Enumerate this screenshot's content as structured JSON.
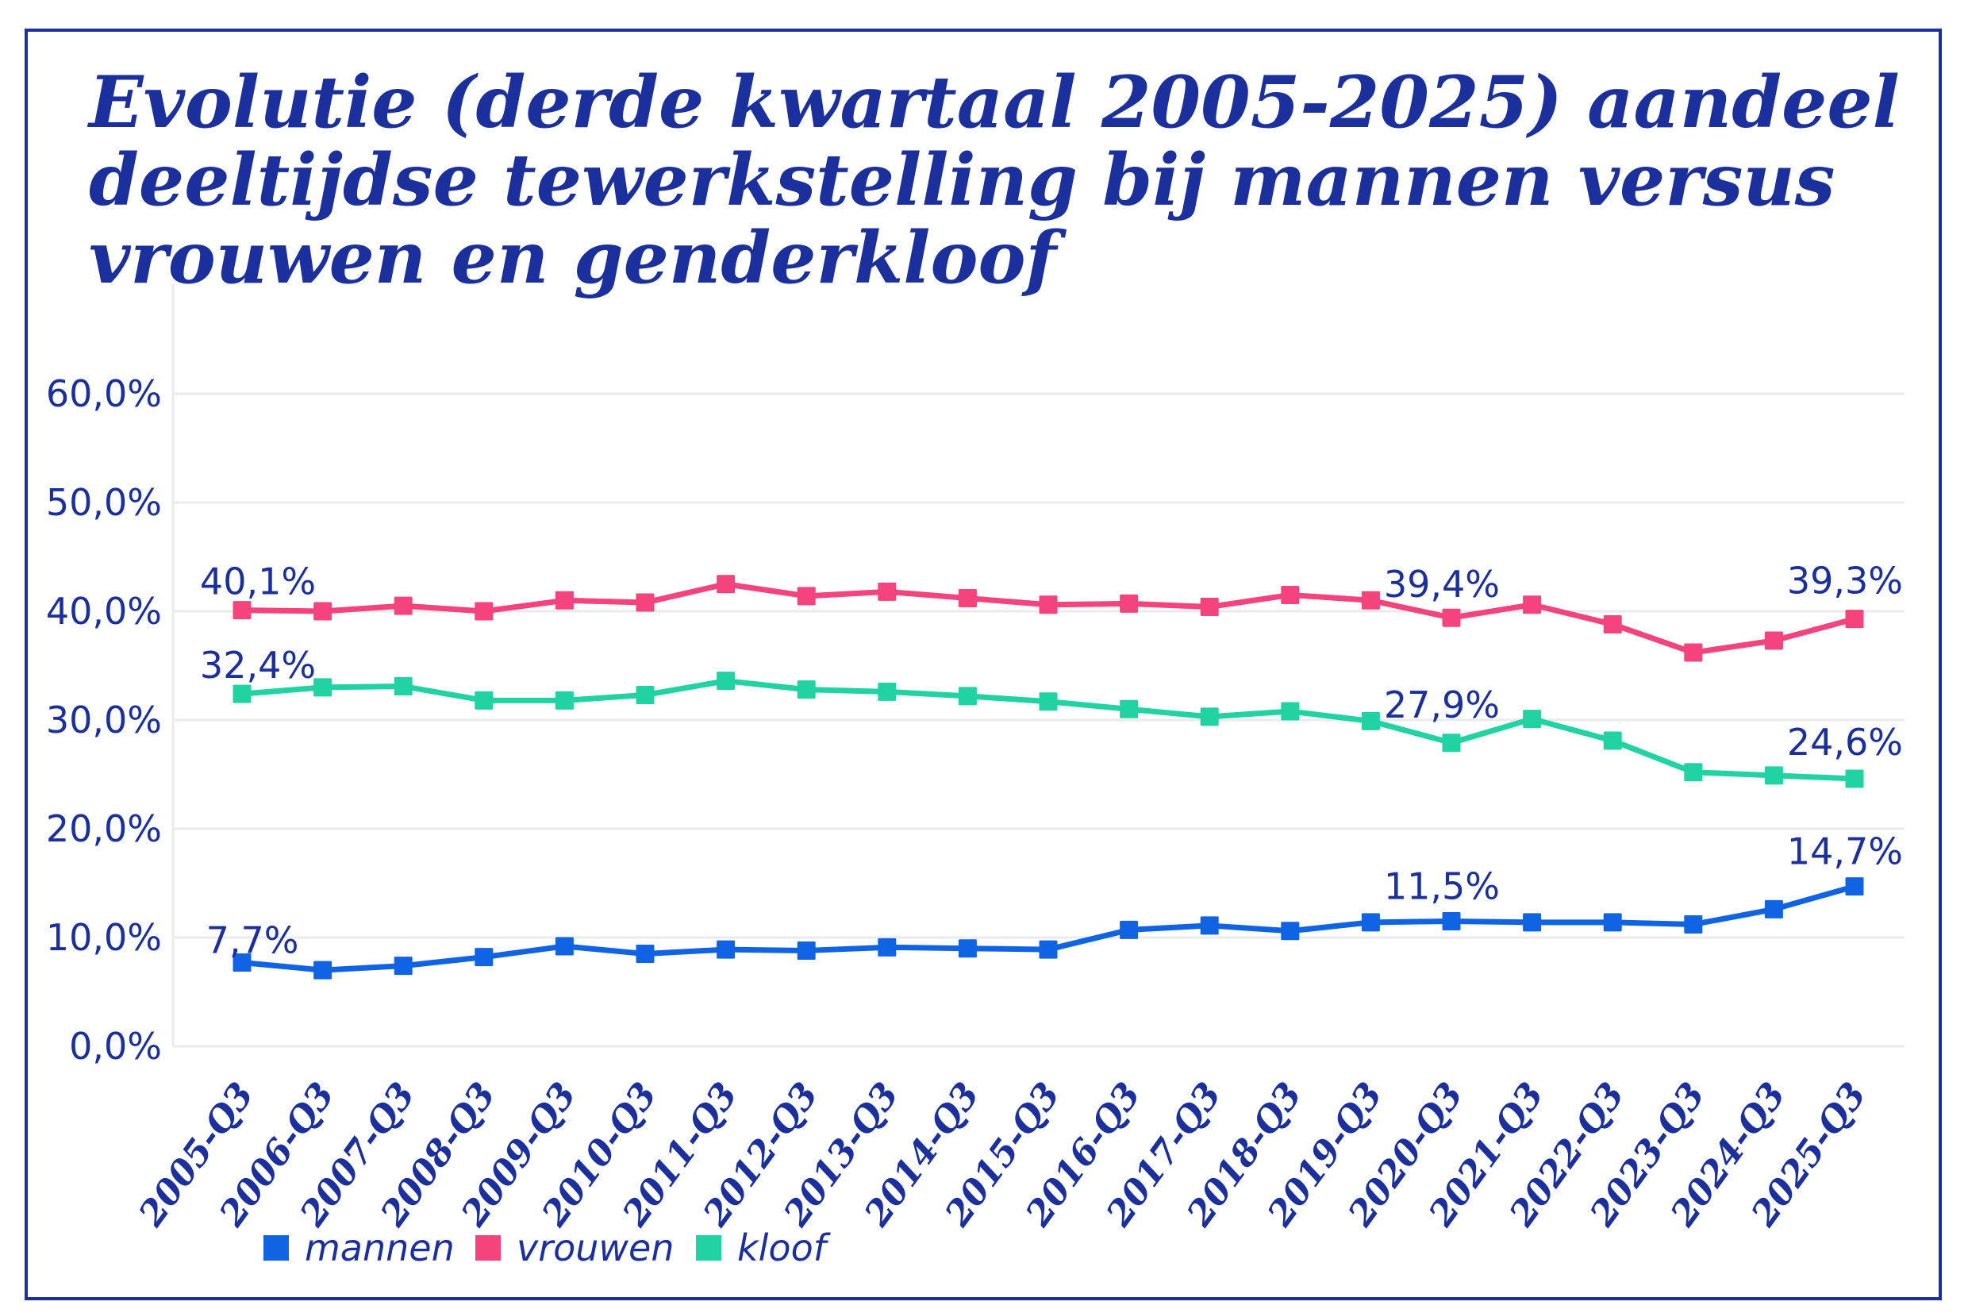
{
  "title": {
    "lines": [
      "Evolutie (derde kwartaal 2005-2025) aandeel",
      "deeltijdse tewerkstelling bij mannen versus",
      "vrouwen en genderkloof"
    ]
  },
  "colors": {
    "navy": "#1B2F9D",
    "mannen": "#1064E3",
    "vrouwen": "#F4437D",
    "kloof": "#21D3A2",
    "grid": "#EBEBEE",
    "background": "#FFFFFF"
  },
  "chart_data": {
    "type": "line",
    "title": "Evolutie (derde kwartaal 2005-2025) aandeel deeltijdse tewerkstelling bij mannen versus vrouwen en genderkloof",
    "x": [
      "2005-Q3",
      "2006-Q3",
      "2007-Q3",
      "2008-Q3",
      "2009-Q3",
      "2010-Q3",
      "2011-Q3",
      "2012-Q3",
      "2013-Q3",
      "2014-Q3",
      "2015-Q3",
      "2016-Q3",
      "2017-Q3",
      "2018-Q3",
      "2019-Q3",
      "2020-Q3",
      "2021-Q3",
      "2022-Q3",
      "2023-Q3",
      "2024-Q3",
      "2025-Q3"
    ],
    "series": [
      {
        "name": "mannen",
        "color_key": "mannen",
        "values": [
          7.7,
          7.0,
          7.4,
          8.2,
          9.2,
          8.5,
          8.9,
          8.8,
          9.1,
          9.0,
          8.9,
          10.7,
          11.1,
          10.6,
          11.4,
          11.5,
          11.4,
          11.4,
          11.2,
          12.6,
          14.7
        ]
      },
      {
        "name": "vrouwen",
        "color_key": "vrouwen",
        "values": [
          40.1,
          40.0,
          40.5,
          40.0,
          41.0,
          40.8,
          42.5,
          41.4,
          41.8,
          41.2,
          40.6,
          40.7,
          40.4,
          41.5,
          41.0,
          39.4,
          40.6,
          38.8,
          36.2,
          37.3,
          39.3
        ]
      },
      {
        "name": "kloof",
        "color_key": "kloof",
        "values": [
          32.4,
          33.0,
          33.1,
          31.8,
          31.8,
          32.3,
          33.6,
          32.8,
          32.6,
          32.2,
          31.7,
          31.0,
          30.3,
          30.8,
          29.9,
          27.9,
          30.1,
          28.1,
          25.2,
          24.9,
          24.6
        ]
      }
    ],
    "y_ticks": [
      {
        "value": 0,
        "label": "0,0%"
      },
      {
        "value": 10,
        "label": "10,0%"
      },
      {
        "value": 20,
        "label": "20,0%"
      },
      {
        "value": 30,
        "label": "30,0%"
      },
      {
        "value": 40,
        "label": "40,0%"
      },
      {
        "value": 50,
        "label": "50,0%"
      },
      {
        "value": 60,
        "label": "60,0%"
      }
    ],
    "ylim": [
      0,
      65
    ],
    "grid": true,
    "legend_position": "bottom",
    "legend": [
      {
        "label": "mannen",
        "color_key": "mannen",
        "x": 332
      },
      {
        "label": "vrouwen",
        "color_key": "vrouwen",
        "x": 599
      },
      {
        "label": "kloof",
        "color_key": "kloof",
        "x": 877
      }
    ],
    "point_labels": [
      {
        "series": "vrouwen",
        "index": 0,
        "text": "40,1%",
        "anchor": "middle",
        "tx": 325,
        "dy": -20
      },
      {
        "series": "kloof",
        "index": 0,
        "text": "32,4%",
        "anchor": "middle",
        "tx": 325,
        "dy": -20
      },
      {
        "series": "mannen",
        "index": 0,
        "text": "7,7%",
        "anchor": "middle",
        "tx": 318,
        "dy": -12
      },
      {
        "series": "vrouwen",
        "index": 15,
        "text": "39,4%",
        "anchor": "end",
        "tx": 1890,
        "dy": -26
      },
      {
        "series": "kloof",
        "index": 15,
        "text": "27,9%",
        "anchor": "end",
        "tx": 1890,
        "dy": -32
      },
      {
        "series": "mannen",
        "index": 15,
        "text": "11,5%",
        "anchor": "end",
        "tx": 1890,
        "dy": -28
      },
      {
        "series": "vrouwen",
        "index": 20,
        "text": "39,3%",
        "anchor": "end",
        "tx": 2398,
        "dy": -32
      },
      {
        "series": "kloof",
        "index": 20,
        "text": "24,6%",
        "anchor": "end",
        "tx": 2398,
        "dy": -30
      },
      {
        "series": "mannen",
        "index": 20,
        "text": "14,7%",
        "anchor": "end",
        "tx": 2398,
        "dy": -28
      }
    ]
  }
}
